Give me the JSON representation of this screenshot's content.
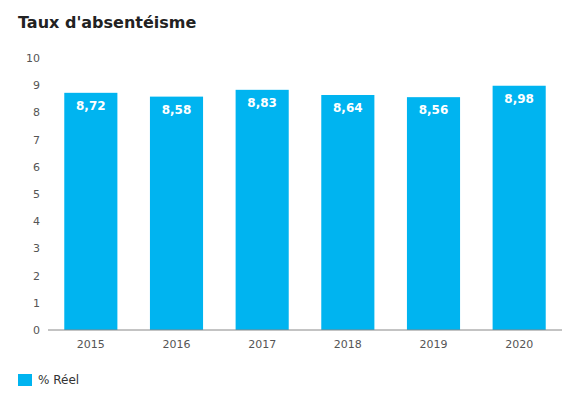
{
  "chart_data": {
    "type": "bar",
    "title": "Taux d'absentéisme",
    "categories": [
      "2015",
      "2016",
      "2017",
      "2018",
      "2019",
      "2020"
    ],
    "series": [
      {
        "name": "% Réel",
        "color": "#00b4f0",
        "values": [
          8.72,
          8.58,
          8.83,
          8.64,
          8.56,
          8.98
        ],
        "value_labels": [
          "8,72",
          "8,58",
          "8,83",
          "8,64",
          "8,56",
          "8,98"
        ]
      }
    ],
    "ylim": [
      0,
      10
    ],
    "yticks": [
      0,
      1,
      2,
      3,
      4,
      5,
      6,
      7,
      8,
      9,
      10
    ],
    "grid": false,
    "legend": "bottom-left",
    "data_labels": true
  }
}
